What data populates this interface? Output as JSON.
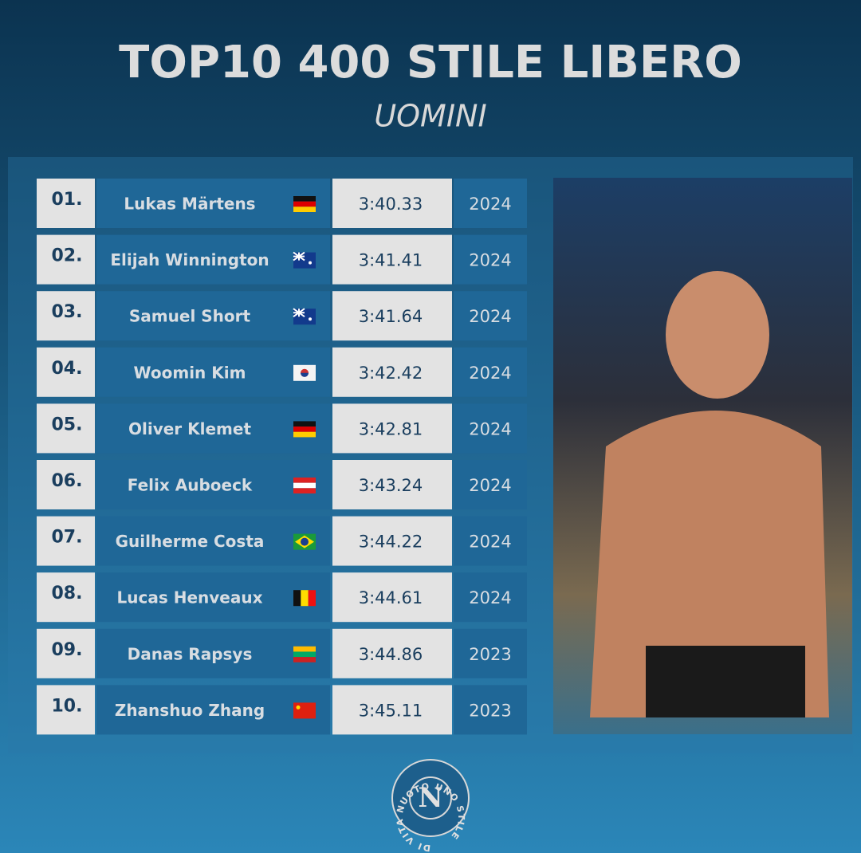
{
  "header": {
    "title": "TOP10 400 STILE LIBERO",
    "subtitle": "UOMINI"
  },
  "table": {
    "rows": [
      [
        "01.",
        "Lukas Märtens",
        "3:40.33",
        "2024"
      ],
      [
        "02.",
        "Elijah Winnington",
        "3:41.41",
        "2024"
      ],
      [
        "03.",
        "Samuel Short",
        "3:41.64",
        "2024"
      ],
      [
        "04.",
        "Woomin Kim",
        "3:42.42",
        "2024"
      ],
      [
        "05.",
        "Oliver Klemet",
        "3:42.81",
        "2024"
      ],
      [
        "06.",
        "Felix Auboeck",
        "3:43.24",
        "2024"
      ],
      [
        "07.",
        "Guilherme Costa",
        "3:44.22",
        "2024"
      ],
      [
        "08.",
        "Lucas Henveaux",
        "3:44.61",
        "2024"
      ],
      [
        "09.",
        "Danas Rapsys",
        "3:44.86",
        "2023"
      ],
      [
        "10.",
        "Zhanshuo Zhang",
        "3:45.11",
        "2023"
      ]
    ]
  },
  "logo": {
    "letter": "N",
    "text": "DI VITA NUOTO UNO STILE"
  }
}
